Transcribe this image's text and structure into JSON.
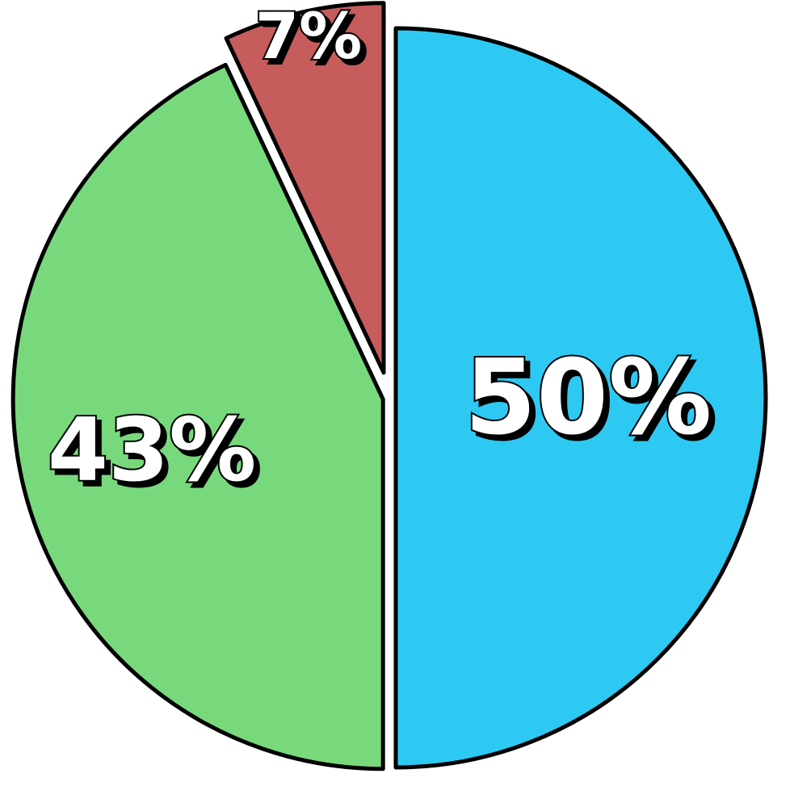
{
  "chart_data": {
    "type": "pie",
    "title": "",
    "slices": [
      {
        "label": "50%",
        "value": 50,
        "color": "#2ec9f2"
      },
      {
        "label": "43%",
        "value": 43,
        "color": "#78d97c"
      },
      {
        "label": "7%",
        "value": 7,
        "color": "#c65c5c"
      }
    ],
    "start": "top",
    "direction": "clockwise",
    "exploded": [
      "7%"
    ],
    "legend": "none",
    "outline_color": "#000000",
    "label_color": "#ffffff"
  }
}
